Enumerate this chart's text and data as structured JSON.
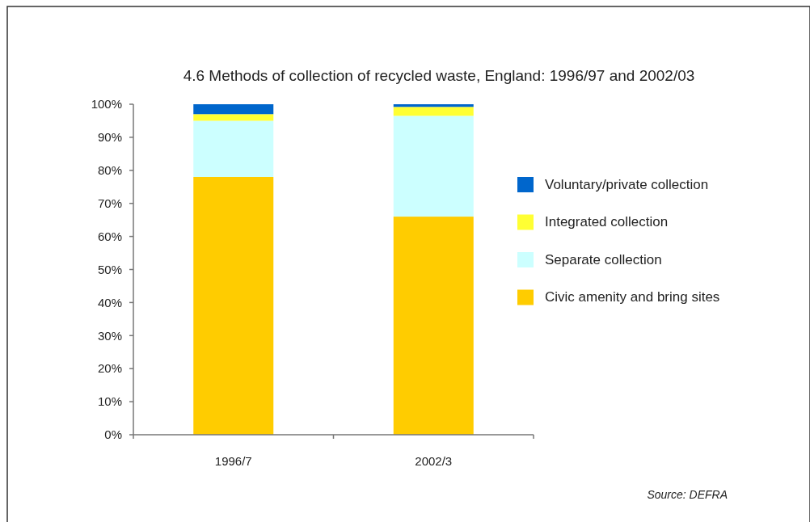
{
  "chart_data": {
    "type": "bar",
    "title": "4.6 Methods of collection of recycled waste, England: 1996/97 and 2002/03",
    "categories": [
      "1996/7",
      "2002/3"
    ],
    "stacked": true,
    "legend": "right",
    "grid": false,
    "series": [
      {
        "name": "Civic amenity and bring sites",
        "color": "#ffcc00",
        "values": [
          78,
          66
        ]
      },
      {
        "name": "Separate collection",
        "color": "#ccffff",
        "values": [
          17,
          30.5
        ]
      },
      {
        "name": "Integrated collection",
        "color": "#ffff33",
        "values": [
          2,
          2.7
        ]
      },
      {
        "name": "Voluntary/private collection",
        "color": "#0066cc",
        "values": [
          3,
          0.8
        ]
      }
    ],
    "ylim": [
      0,
      100
    ],
    "yticks": [
      {
        "value": 0,
        "label": "0%"
      },
      {
        "value": 10,
        "label": "10%"
      },
      {
        "value": 20,
        "label": "20%"
      },
      {
        "value": 30,
        "label": "30%"
      },
      {
        "value": 40,
        "label": "40%"
      },
      {
        "value": 50,
        "label": "50%"
      },
      {
        "value": 60,
        "label": "60%"
      },
      {
        "value": 70,
        "label": "70%"
      },
      {
        "value": 80,
        "label": "80%"
      },
      {
        "value": 90,
        "label": "90%"
      },
      {
        "value": 100,
        "label": "100%"
      }
    ],
    "annotations": [
      "Source: DEFRA"
    ]
  }
}
